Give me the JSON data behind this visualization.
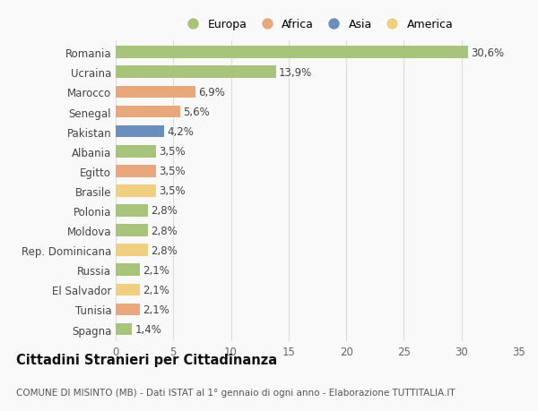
{
  "countries": [
    "Romania",
    "Ucraina",
    "Marocco",
    "Senegal",
    "Pakistan",
    "Albania",
    "Egitto",
    "Brasile",
    "Polonia",
    "Moldova",
    "Rep. Dominicana",
    "Russia",
    "El Salvador",
    "Tunisia",
    "Spagna"
  ],
  "values": [
    30.6,
    13.9,
    6.9,
    5.6,
    4.2,
    3.5,
    3.5,
    3.5,
    2.8,
    2.8,
    2.8,
    2.1,
    2.1,
    2.1,
    1.4
  ],
  "labels": [
    "30,6%",
    "13,9%",
    "6,9%",
    "5,6%",
    "4,2%",
    "3,5%",
    "3,5%",
    "3,5%",
    "2,8%",
    "2,8%",
    "2,8%",
    "2,1%",
    "2,1%",
    "2,1%",
    "1,4%"
  ],
  "colors": [
    "#a8c47a",
    "#a8c47a",
    "#e8a87c",
    "#e8a87c",
    "#6a8fbf",
    "#a8c47a",
    "#e8a87c",
    "#f0d080",
    "#a8c47a",
    "#a8c47a",
    "#f0d080",
    "#a8c47a",
    "#f0d080",
    "#e8a87c",
    "#a8c47a"
  ],
  "legend_labels": [
    "Europa",
    "Africa",
    "Asia",
    "America"
  ],
  "legend_colors": [
    "#a8c47a",
    "#e8a87c",
    "#6a8fbf",
    "#f0d080"
  ],
  "title": "Cittadini Stranieri per Cittadinanza",
  "subtitle": "COMUNE DI MISINTO (MB) - Dati ISTAT al 1° gennaio di ogni anno - Elaborazione TUTTITALIA.IT",
  "xlim": [
    0,
    35
  ],
  "xticks": [
    0,
    5,
    10,
    15,
    20,
    25,
    30,
    35
  ],
  "background_color": "#f9f9f9",
  "plot_bg_color": "#f9f9f9",
  "grid_color": "#dddddd",
  "bar_height": 0.62,
  "label_fontsize": 8.5,
  "tick_fontsize": 8.5,
  "title_fontsize": 10.5,
  "subtitle_fontsize": 7.5,
  "legend_fontsize": 9
}
